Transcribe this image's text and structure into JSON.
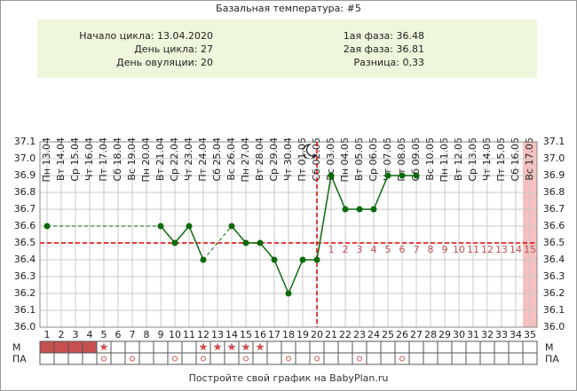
{
  "chart_data": {
    "type": "line",
    "title": "Базальная температура: #5",
    "info_left": [
      "Начало цикла: 13.04.2020",
      "День цикла: 27",
      "День овуляции: 20"
    ],
    "info_right": [
      "1ая фаза: 36.48",
      "2ая фаза: 36.81",
      "Разница: 0,33"
    ],
    "categories": [
      "Пн 13.04",
      "Вт 14.04",
      "Ср 15.04",
      "Чт 16.04",
      "Пт 17.04",
      "Сб 18.04",
      "Вс 19.04",
      "Пн 20.04",
      "Вт 21.04",
      "Ср 22.04",
      "Чт 23.04",
      "Пт 24.04",
      "Сб 25.04",
      "Вс 26.04",
      "Пн 27.04",
      "Вт 28.04",
      "Ср 29.04",
      "Чт 30.04",
      "Пт 01.05",
      "Сб 02.05",
      "Вс 03.05",
      "Пн 04.05",
      "Вт 05.05",
      "Ср 06.05",
      "Чт 07.05",
      "Пт 08.05",
      "Сб 09.05",
      "Вс 10.05",
      "Пн 11.05",
      "Вт 12.05",
      "Ср 13.05",
      "Чт 14.05",
      "Пт 15.05",
      "Сб 16.05",
      "Вс 17.05"
    ],
    "x": [
      1,
      2,
      3,
      4,
      5,
      6,
      7,
      8,
      9,
      10,
      11,
      12,
      13,
      14,
      15,
      16,
      17,
      18,
      19,
      20,
      21,
      22,
      23,
      24,
      25,
      26,
      27,
      28,
      29,
      30,
      31,
      32,
      33,
      34,
      35
    ],
    "xlim": [
      0.5,
      35.5
    ],
    "series": [
      {
        "color": "#0a6a0a",
        "values": [
          36.6,
          null,
          null,
          null,
          null,
          null,
          null,
          null,
          36.6,
          36.5,
          36.6,
          36.4,
          null,
          36.6,
          36.5,
          36.5,
          36.4,
          36.2,
          36.4,
          36.4,
          36.9,
          36.7,
          36.7,
          36.7,
          36.9,
          36.9,
          36.9,
          null,
          null,
          null,
          null,
          null,
          null,
          null,
          null
        ]
      }
    ],
    "ylim": [
      36.0,
      37.1
    ],
    "yticks": [
      {
        "value": 36.0,
        "label": "36.0"
      },
      36.1,
      36.2,
      36.3,
      36.4,
      36.5,
      36.6,
      36.7,
      36.8,
      36.9,
      {
        "value": 37.0,
        "label": "37.0"
      },
      37.1
    ],
    "coverline": 36.5,
    "ovulation_day": 20,
    "phase2_labels": [
      1,
      2,
      3,
      4,
      5,
      6,
      7,
      8,
      9,
      10,
      11,
      12,
      13,
      14,
      15
    ],
    "highlight_day": 35,
    "row_labels": [
      "М",
      "ПА"
    ],
    "menstruation_days": [
      1,
      2,
      3,
      4
    ],
    "star_days": [
      5,
      12,
      13,
      14,
      15,
      16
    ],
    "sex_days": [
      5,
      7,
      10,
      12,
      15,
      18,
      20,
      23,
      26
    ],
    "footer": "Постройте свой график на BabyPlan.ru"
  }
}
